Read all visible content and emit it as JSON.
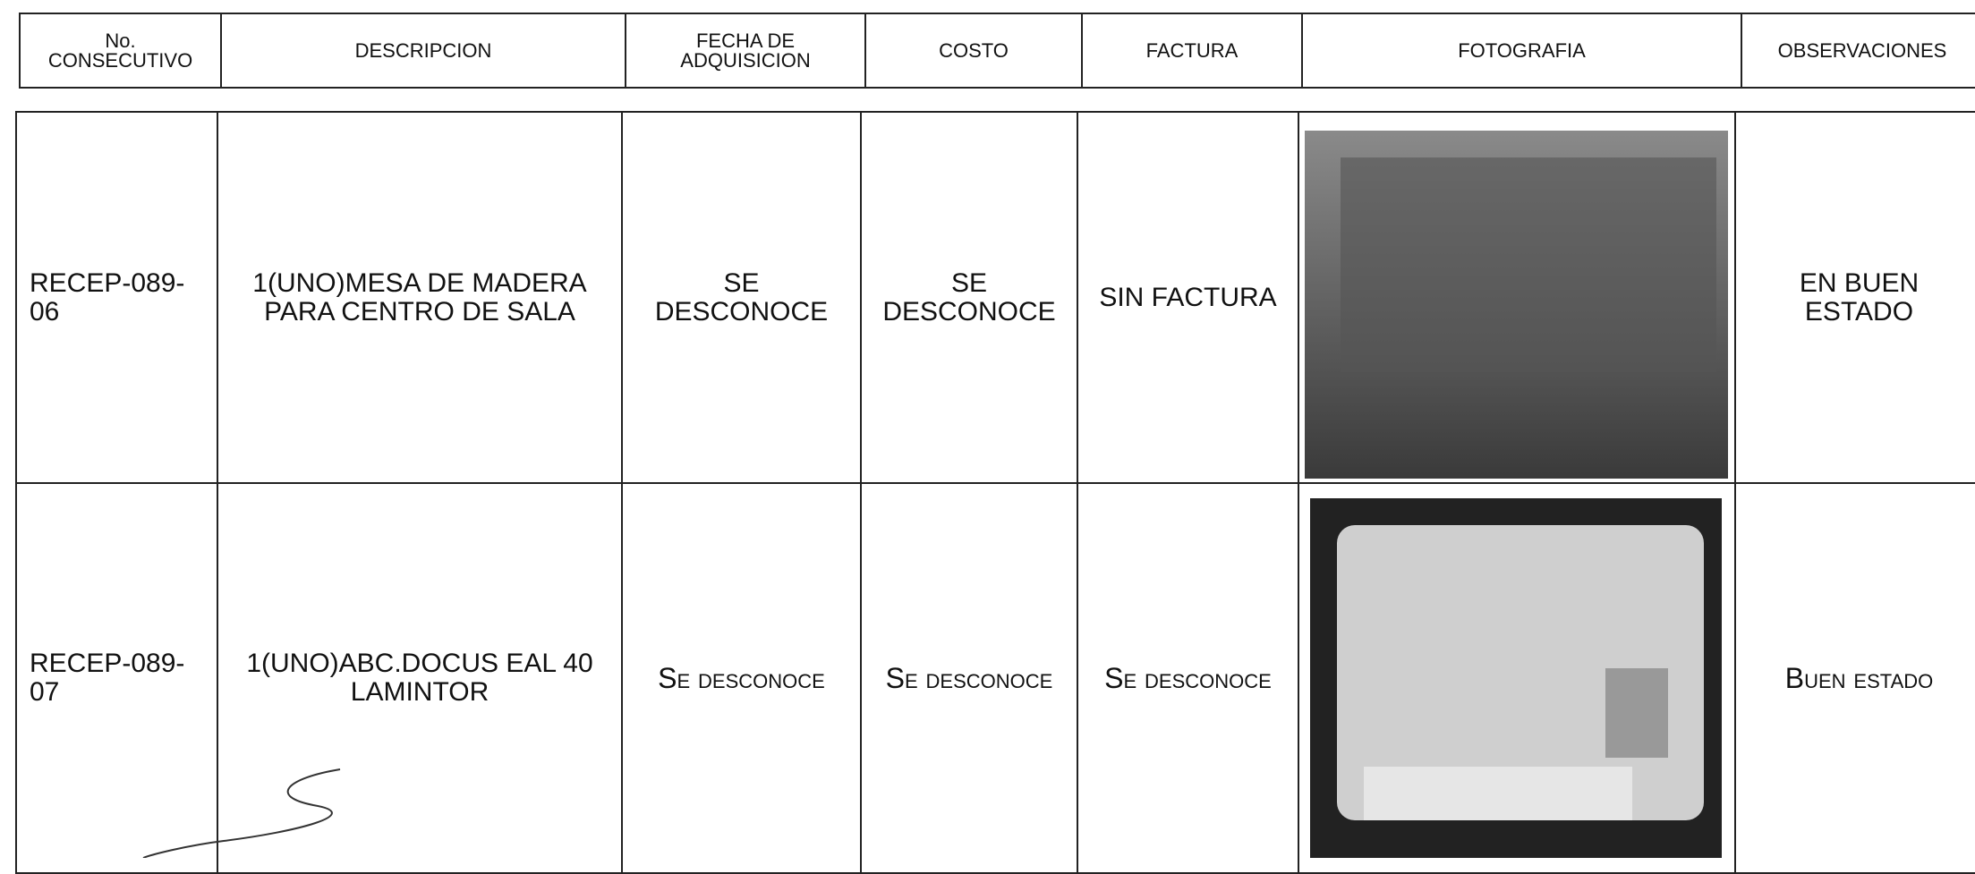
{
  "table": {
    "header": [
      "No. CONSECUTIVO",
      "DESCRIPCION",
      "FECHA DE ADQUISICION",
      "COSTO",
      "FACTURA",
      "FOTOGRAFIA",
      "OBSERVACIONES"
    ],
    "rows": [
      {
        "consecutivo": "RECEP-089-06",
        "descripcion": "1(UNO)MESA DE MADERA PARA CENTRO DE SALA",
        "fecha": "SE DESCONOCE",
        "costo": "SE DESCONOCE",
        "factura": "SIN FACTURA",
        "observaciones": "EN BUEN ESTADO"
      },
      {
        "consecutivo": "RECEP-089-07",
        "descripcion": "1(UNO)ABC.DOCUS EAL 40 LAMINTOR",
        "fecha": "Se desconoce",
        "costo": "Se desconoce",
        "factura": "Se desconoce",
        "observaciones": "Buen estado"
      }
    ]
  }
}
